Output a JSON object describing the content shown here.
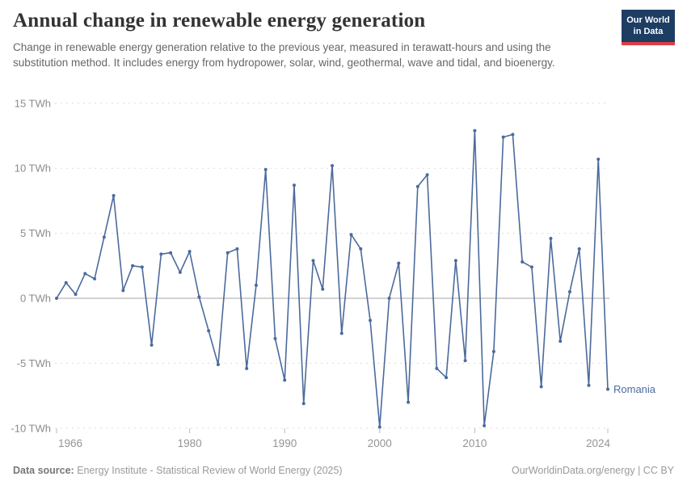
{
  "header": {
    "title": "Annual change in renewable energy generation",
    "subtitle": "Change in renewable energy generation relative to the previous year, measured in terawatt-hours and using the substitution method. It includes energy from hydropower, solar, wind, geothermal, wave and tidal, and bioenergy.",
    "logo": {
      "line1": "Our World",
      "line2": "in Data",
      "bg_color": "#1d3d63",
      "bar_color": "#dc3e45"
    }
  },
  "chart_data": {
    "type": "line",
    "title": "Annual change in renewable energy generation",
    "unit": "TWh",
    "grid": true,
    "legend_position": "end-of-line",
    "xlim": [
      1966,
      2024
    ],
    "ylim": [
      -10,
      15
    ],
    "y_ticks": [
      15,
      10,
      5,
      0,
      -5,
      -10
    ],
    "y_tick_labels": [
      "15 TWh",
      "10 TWh",
      "5 TWh",
      "0 TWh",
      "-5 TWh",
      "-10 TWh"
    ],
    "x_ticks": [
      1966,
      1980,
      1990,
      2000,
      2010,
      2024
    ],
    "series": [
      {
        "name": "Romania",
        "color": "#4C6A9C",
        "x": [
          1966,
          1967,
          1968,
          1969,
          1970,
          1971,
          1972,
          1973,
          1974,
          1975,
          1976,
          1977,
          1978,
          1979,
          1980,
          1981,
          1982,
          1983,
          1984,
          1985,
          1986,
          1987,
          1988,
          1989,
          1990,
          1991,
          1992,
          1993,
          1994,
          1995,
          1996,
          1997,
          1998,
          1999,
          2000,
          2001,
          2002,
          2003,
          2004,
          2005,
          2006,
          2007,
          2008,
          2009,
          2010,
          2011,
          2012,
          2013,
          2014,
          2015,
          2016,
          2017,
          2018,
          2019,
          2020,
          2021,
          2022,
          2023,
          2024
        ],
        "values": [
          0.0,
          1.2,
          0.3,
          1.9,
          1.5,
          4.7,
          7.9,
          0.6,
          2.5,
          2.4,
          -3.6,
          3.4,
          3.5,
          2.0,
          3.6,
          0.1,
          -2.5,
          -5.1,
          3.5,
          3.8,
          -5.4,
          1.0,
          9.9,
          -3.1,
          -6.3,
          8.7,
          -8.1,
          2.9,
          0.7,
          10.2,
          -2.7,
          4.9,
          3.8,
          -1.7,
          -9.9,
          0.0,
          2.7,
          -8.0,
          8.6,
          9.5,
          -5.4,
          -6.1,
          2.9,
          -4.8,
          12.9,
          -9.8,
          -4.1,
          12.4,
          12.6,
          2.8,
          2.4,
          -6.8,
          4.6,
          -3.3,
          0.5,
          3.8,
          -6.7,
          10.7,
          -7.0
        ]
      }
    ]
  },
  "footer": {
    "source_bold": "Data source:",
    "source_rest": " Energy Institute - Statistical Review of World Energy (2025)",
    "right": "OurWorldinData.org/energy | CC BY"
  }
}
